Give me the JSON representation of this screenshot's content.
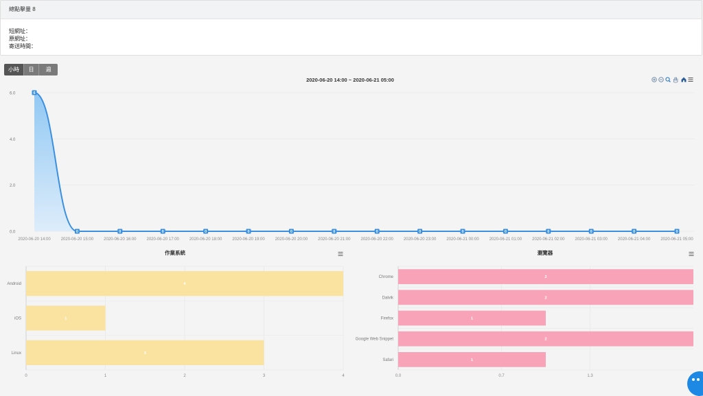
{
  "header": {
    "title": "總點擊量 8"
  },
  "info": {
    "short_url_label": "短網址：",
    "original_url_label": "原網址：",
    "sent_time_label": "寄送時間："
  },
  "range_buttons": [
    "小時",
    "日",
    "週"
  ],
  "line_chart": {
    "title": "2020-06-20 14:00 ~ 2020-06-21 05:00",
    "toolbar_icons": [
      "zoom-in-icon",
      "zoom-out-icon",
      "magnify-icon",
      "pan-hand-icon",
      "home-icon",
      "menu-icon"
    ],
    "chart_data": {
      "type": "area",
      "title": "2020-06-20 14:00 ~ 2020-06-21 05:00",
      "x": [
        "2020-06-20 14:00",
        "2020-06-20 15:00",
        "2020-06-20 16:00",
        "2020-06-20 17:00",
        "2020-06-20 18:00",
        "2020-06-20 19:00",
        "2020-06-20 20:00",
        "2020-06-20 21:00",
        "2020-06-20 22:00",
        "2020-06-20 23:00",
        "2020-06-21 00:00",
        "2020-06-21 01:00",
        "2020-06-21 02:00",
        "2020-06-21 03:00",
        "2020-06-21 04:00",
        "2020-06-21 05:00"
      ],
      "values": [
        6,
        0,
        0,
        0,
        0,
        0,
        0,
        0,
        0,
        0,
        0,
        0,
        0,
        0,
        0,
        0
      ],
      "y_ticks": [
        "0.0",
        "2.0",
        "4.0",
        "6.0"
      ],
      "ylim": [
        0,
        6
      ],
      "color": "#3b8fe0"
    }
  },
  "os_chart": {
    "title": "作業系統",
    "chart_data": {
      "type": "bar",
      "orientation": "horizontal",
      "title": "作業系統",
      "categories": [
        "Android",
        "iOS",
        "Linux"
      ],
      "values": [
        4,
        1,
        3
      ],
      "x_ticks": [
        "0",
        "1",
        "2",
        "3",
        "4"
      ],
      "xlim": [
        0,
        4
      ],
      "color": "#fae3a1"
    }
  },
  "browser_chart": {
    "title": "瀏覽器",
    "chart_data": {
      "type": "bar",
      "orientation": "horizontal",
      "title": "瀏覽器",
      "categories": [
        "Chrome",
        "Dalvik",
        "Firefox",
        "Google Web Snippet",
        "Safari"
      ],
      "values": [
        2,
        2,
        1,
        2,
        1
      ],
      "x_ticks": [
        "0.0",
        "0.7",
        "1.3"
      ],
      "x_tick_values": [
        0,
        0.7,
        1.3
      ],
      "xlim": [
        0,
        2
      ],
      "color": "#f8a3b8"
    }
  }
}
